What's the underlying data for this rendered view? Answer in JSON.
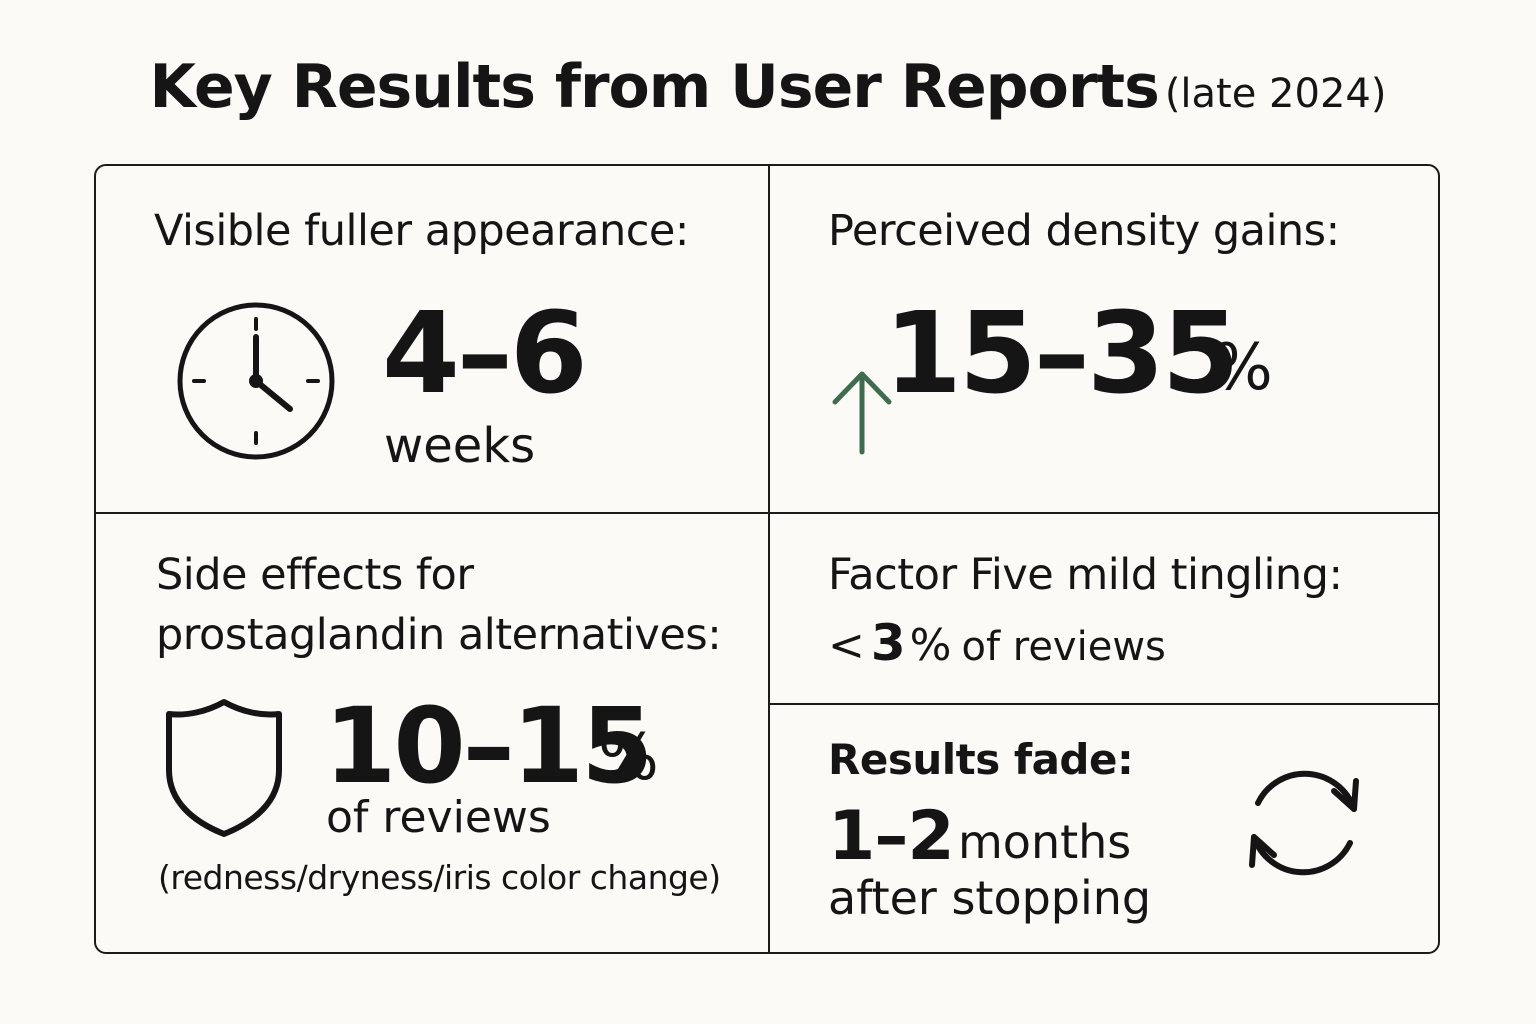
{
  "title": {
    "main": "Key Results from User Reports",
    "sub": "(late 2024)"
  },
  "cards": {
    "fuller": {
      "label": "Visible fuller appearance:",
      "value": "4–6",
      "unit": "weeks",
      "icon": "clock-icon"
    },
    "density": {
      "label": "Perceived density gains:",
      "value": "15–35",
      "unit": "%",
      "icon": "arrow-up-icon",
      "icon_color": "#3f6b4e"
    },
    "side_effects": {
      "label_line1": "Side effects for",
      "label_line2": "prostaglandin alternatives:",
      "value": "10–15",
      "unit": "%",
      "unit2": "of reviews",
      "note": "(redness/dryness/iris color change)",
      "icon": "shield-icon"
    },
    "tingling": {
      "label": "Factor Five mild tingling:",
      "prefix": "<",
      "value": "3",
      "unit": "%",
      "suffix": "of reviews"
    },
    "fade": {
      "label": "Results fade:",
      "value": "1–2",
      "unit": "months",
      "suffix": "after stopping",
      "icon": "refresh-icon"
    }
  }
}
